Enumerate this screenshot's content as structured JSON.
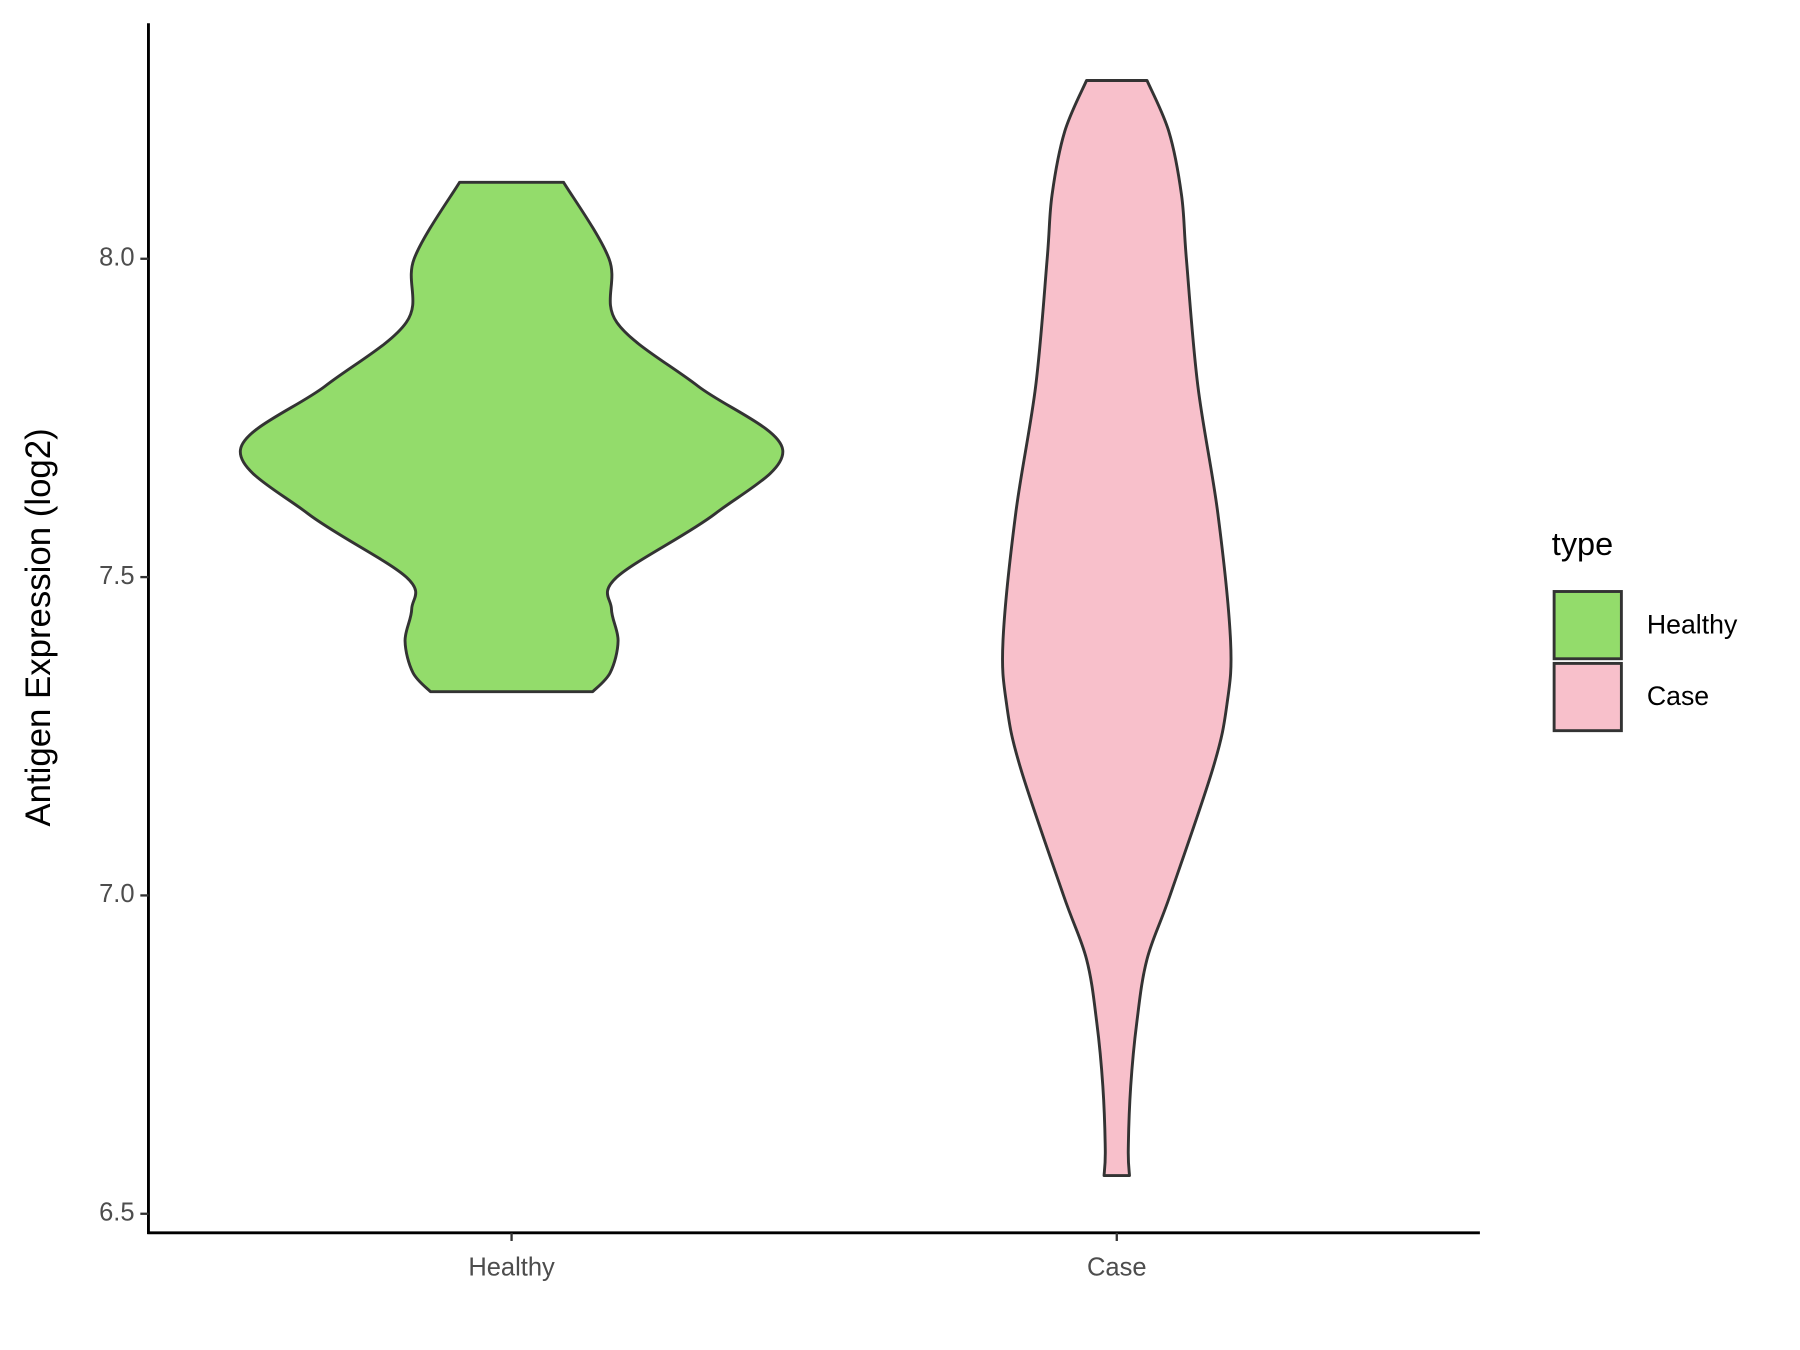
{
  "chart_data": {
    "type": "violin",
    "y_label": "Antigen Expression (log2)",
    "categories": [
      "Healthy",
      "Case"
    ],
    "legend_title": "type",
    "legend": "right",
    "ylim": [
      6.47,
      8.37
    ],
    "yticks": [
      {
        "value": 6.5,
        "label": "6.5"
      },
      {
        "value": 7,
        "label": "7.0"
      },
      {
        "value": 7.5,
        "label": "7.5"
      },
      {
        "value": 8,
        "label": "8.0"
      }
    ],
    "series": [
      {
        "name": "Healthy",
        "color": "#93dc6b",
        "y": [
          7.32,
          7.35,
          7.4,
          7.45,
          7.5,
          7.6,
          7.7,
          7.8,
          7.9,
          8.0,
          8.12
        ],
        "widths": [
          0.134,
          0.163,
          0.176,
          0.165,
          0.174,
          0.337,
          0.448,
          0.308,
          0.174,
          0.161,
          0.086
        ]
      },
      {
        "name": "Case",
        "color": "#f8c0cb",
        "y": [
          6.56,
          6.6,
          6.7,
          6.8,
          6.9,
          7.0,
          7.2,
          7.3,
          7.4,
          7.6,
          7.8,
          8.0,
          8.1,
          8.2,
          8.28
        ],
        "widths": [
          0.021,
          0.019,
          0.023,
          0.033,
          0.05,
          0.088,
          0.159,
          0.182,
          0.188,
          0.167,
          0.134,
          0.115,
          0.107,
          0.086,
          0.05
        ]
      }
    ]
  }
}
